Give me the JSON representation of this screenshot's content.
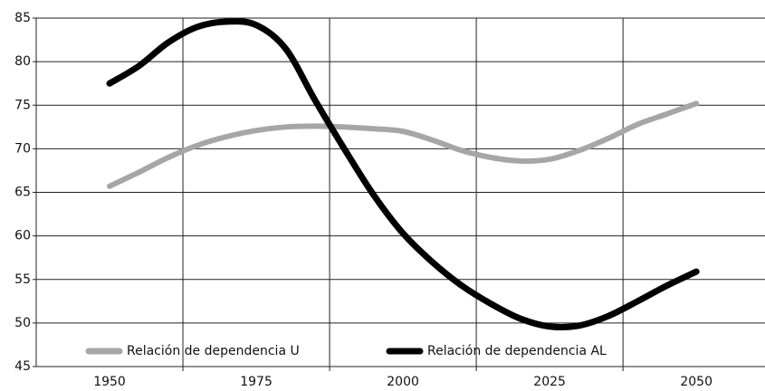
{
  "chart_data": {
    "type": "line",
    "x": [
      1950,
      1955,
      1960,
      1965,
      1970,
      1975,
      1980,
      1985,
      1990,
      1995,
      2000,
      2005,
      2010,
      2015,
      2020,
      2025,
      2030,
      2035,
      2040,
      2045,
      2050
    ],
    "series": [
      {
        "name": "Relación de dependencia U",
        "color": "#a6a6a6",
        "values": [
          65.7,
          67.3,
          69.0,
          70.4,
          71.4,
          72.1,
          72.5,
          72.6,
          72.5,
          72.3,
          72.0,
          71.0,
          69.8,
          69.0,
          68.6,
          68.8,
          69.8,
          71.2,
          72.8,
          74.0,
          75.2
        ]
      },
      {
        "name": "Relación de dependencia AL",
        "color": "#000000",
        "values": [
          77.5,
          79.5,
          82.2,
          84.0,
          84.6,
          84.2,
          81.5,
          75.6,
          70.0,
          64.7,
          60.3,
          57.0,
          54.3,
          52.2,
          50.5,
          49.6,
          49.7,
          50.8,
          52.5,
          54.3,
          55.9
        ]
      }
    ],
    "xlim": [
      1937.5,
      2061.7
    ],
    "xticks": [
      1950,
      1975,
      2000,
      2025,
      2050
    ],
    "ylim": [
      45,
      85
    ],
    "yticks": [
      45,
      50,
      55,
      60,
      65,
      70,
      75,
      80,
      85
    ],
    "grid": true,
    "legend": "bottom"
  }
}
